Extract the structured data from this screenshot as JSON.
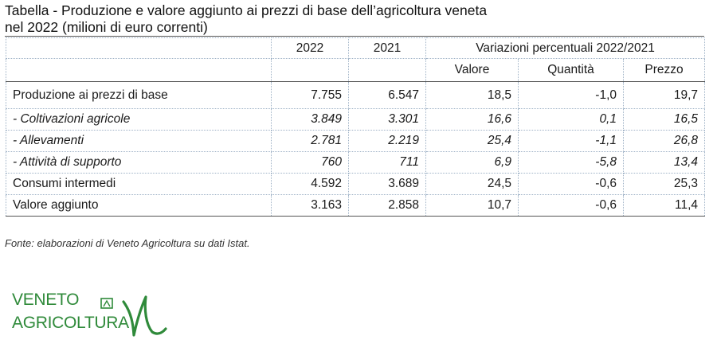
{
  "title": {
    "line1": "Tabella  - Produzione e valore aggiunto ai prezzi di base dell’agricoltura veneta",
    "line2": "nel 2022 (milioni  di euro correnti)"
  },
  "table": {
    "header1": {
      "y2022": "2022",
      "y2021": "2021",
      "variation": "Variazioni percentuali 2022/2021"
    },
    "header2": {
      "valore": "Valore",
      "quantita": "Quantità",
      "prezzo": "Prezzo"
    },
    "rows": [
      {
        "label": "Produzione ai prezzi di base",
        "v2022": "7.755",
        "v2021": "6.547",
        "valore": "18,5",
        "quantita": "-1,0",
        "prezzo": "19,7"
      },
      {
        "label": "- Coltivazioni agricole",
        "v2022": "3.849",
        "v2021": "3.301",
        "valore": "16,6",
        "quantita": "0,1",
        "prezzo": "16,5"
      },
      {
        "label": "- Allevamenti",
        "v2022": "2.781",
        "v2021": "2.219",
        "valore": "25,4",
        "quantita": "-1,1",
        "prezzo": "26,8"
      },
      {
        "label": "- Attività di supporto",
        "v2022": "760",
        "v2021": "711",
        "valore": "6,9",
        "quantita": "-5,8",
        "prezzo": "13,4"
      },
      {
        "label": "Consumi intermedi",
        "v2022": "4.592",
        "v2021": "3.689",
        "valore": "24,5",
        "quantita": "-0,6",
        "prezzo": "25,3"
      },
      {
        "label": "Valore aggiunto",
        "v2022": "3.163",
        "v2021": "2.858",
        "valore": "10,7",
        "quantita": "-0,6",
        "prezzo": "11,4"
      }
    ]
  },
  "source": "Fonte: elaborazioni di Veneto Agricoltura su dati Istat.",
  "logo": {
    "line1": "VENETO",
    "line2": "AGRICOLTURA",
    "color": "#2f8a3a"
  }
}
